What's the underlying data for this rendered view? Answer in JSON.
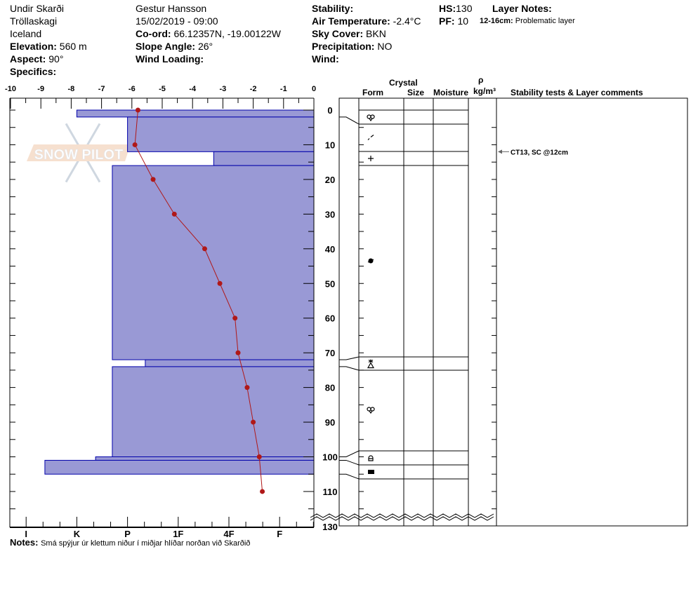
{
  "header": {
    "location": "Undir Skarði",
    "region": "Tröllaskagi",
    "country": "Iceland",
    "elevation_label": "Elevation:",
    "elevation": "560 m",
    "aspect_label": "Aspect:",
    "aspect": "90°",
    "specifics_label": "Specifics:",
    "observer": "Gestur Hansson",
    "datetime": "15/02/2019 - 09:00",
    "coord_label": "Co-ord:",
    "coord": "66.12357N, -19.00122W",
    "slope_label": "Slope Angle:",
    "slope": "26°",
    "wind_loading_label": "Wind Loading:",
    "stability_label": "Stability:",
    "air_temp_label": "Air Temperature:",
    "air_temp": "-2.4°C",
    "sky_label": "Sky Cover:",
    "sky": "BKN",
    "precip_label": "Precipitation:",
    "precip": "NO",
    "wind_label": "Wind:",
    "hs_label": "HS:",
    "hs": "130",
    "pf_label": "PF:",
    "pf": "10",
    "layer_notes_label": "Layer Notes:",
    "layer_note_range": "12-16cm:",
    "layer_note_text": "Problematic layer"
  },
  "table_headers": {
    "crystal": "Crystal",
    "form": "Form",
    "size": "Size",
    "moisture": "Moisture",
    "rho": "ρ",
    "density_unit": "kg/m³",
    "comments": "Stability tests & Layer comments"
  },
  "notes_label": "Notes:",
  "notes": "Smá spýjur úr klettum niður í miðjar hlíðar norðan við Skarðið",
  "watermark": "SNOW PILOT",
  "colors": {
    "layer_fill": "#9999d5",
    "layer_stroke": "#0000aa",
    "temp": "#b01818"
  },
  "chart_data": {
    "type": "snow-profile",
    "temp_axis": {
      "ticks": [
        "-10",
        "-9",
        "-8",
        "-7",
        "-6",
        "-5",
        "-4",
        "-3",
        "-2",
        "-1",
        "0"
      ],
      "range": [
        -10,
        0
      ]
    },
    "hardness_axis": {
      "ticks": [
        "I",
        "K",
        "P",
        "1F",
        "4F",
        "F"
      ]
    },
    "depth_axis": {
      "ticks": [
        "0",
        "10",
        "20",
        "30",
        "40",
        "50",
        "60",
        "70",
        "80",
        "90",
        "100",
        "110",
        "130"
      ],
      "range": [
        0,
        130
      ],
      "break": true
    },
    "layers": [
      {
        "top": 0,
        "bottom": 2,
        "hardness_index": 5.0,
        "form": "rounded-faceted"
      },
      {
        "top": 2,
        "bottom": 12,
        "hardness_index": 4.0,
        "form": "decomposed"
      },
      {
        "top": 12,
        "bottom": 16,
        "hardness_index": 2.3,
        "form": "precipitation"
      },
      {
        "top": 16,
        "bottom": 72,
        "hardness_index": 4.3,
        "form": "melt-freeze"
      },
      {
        "top": 72,
        "bottom": 74,
        "hardness_index": 3.65,
        "form": "surface-hoar-depth-hoar"
      },
      {
        "top": 74,
        "bottom": 100,
        "hardness_index": 4.3,
        "form": "rounded-faceted"
      },
      {
        "top": 100,
        "bottom": 101,
        "hardness_index": 4.63,
        "form": "faceted-rounding"
      },
      {
        "top": 101,
        "bottom": 105,
        "hardness_index": 5.63,
        "form": "ice-layer"
      }
    ],
    "temperature": {
      "depth": [
        0,
        10,
        20,
        30,
        40,
        50,
        60,
        70,
        80,
        90,
        100,
        110
      ],
      "temp": [
        -5.8,
        -5.9,
        -5.3,
        -4.6,
        -3.6,
        -3.1,
        -2.6,
        -2.5,
        -2.2,
        -2.0,
        -1.8,
        -1.7
      ]
    },
    "tests": [
      {
        "depth": 12,
        "label": "CT13, SC @12cm"
      }
    ]
  }
}
